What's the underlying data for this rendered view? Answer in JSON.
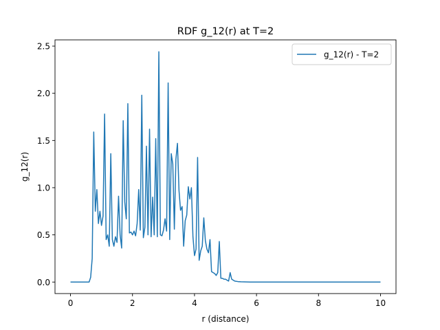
{
  "chart_data": {
    "type": "line",
    "title": "RDF g_12(r) at T=2",
    "xlabel": "r (distance)",
    "ylabel": "g_12(r)",
    "xlim": [
      -0.5,
      10.5
    ],
    "ylim": [
      -0.122,
      2.566
    ],
    "xticks": [
      0,
      2,
      4,
      6,
      8,
      10
    ],
    "xtick_labels": [
      "0",
      "2",
      "4",
      "6",
      "8",
      "10"
    ],
    "yticks": [
      0.0,
      0.5,
      1.0,
      1.5,
      2.0,
      2.5
    ],
    "ytick_labels": [
      "0.0",
      "0.5",
      "1.0",
      "1.5",
      "2.0",
      "2.5"
    ],
    "grid": false,
    "legend_position": "upper right",
    "series": [
      {
        "name": "g_12(r) - T=2",
        "color": "#1f77b4",
        "x": [
          0.0,
          0.05,
          0.1,
          0.15,
          0.2,
          0.25,
          0.3,
          0.35,
          0.4,
          0.45,
          0.5,
          0.55,
          0.6,
          0.65,
          0.7,
          0.75,
          0.8,
          0.85,
          0.9,
          0.95,
          1.0,
          1.05,
          1.1,
          1.15,
          1.2,
          1.25,
          1.3,
          1.35,
          1.4,
          1.45,
          1.5,
          1.55,
          1.6,
          1.65,
          1.7,
          1.75,
          1.8,
          1.85,
          1.9,
          1.95,
          2.0,
          2.05,
          2.1,
          2.15,
          2.2,
          2.25,
          2.3,
          2.35,
          2.4,
          2.45,
          2.5,
          2.55,
          2.6,
          2.65,
          2.7,
          2.75,
          2.8,
          2.85,
          2.9,
          2.95,
          3.0,
          3.05,
          3.1,
          3.15,
          3.2,
          3.25,
          3.3,
          3.35,
          3.4,
          3.45,
          3.5,
          3.55,
          3.6,
          3.65,
          3.7,
          3.75,
          3.8,
          3.85,
          3.9,
          3.95,
          4.0,
          4.05,
          4.1,
          4.15,
          4.2,
          4.25,
          4.3,
          4.35,
          4.4,
          4.45,
          4.5,
          4.55,
          4.6,
          4.65,
          4.7,
          4.75,
          4.8,
          4.85,
          4.9,
          4.95,
          5.0,
          5.05,
          5.1,
          5.15,
          5.2,
          5.3,
          5.4,
          5.5,
          5.6,
          5.7,
          5.8,
          6.0,
          7.0,
          8.0,
          9.0,
          10.0
        ],
        "y": [
          0.0,
          0.0,
          0.0,
          0.0,
          0.0,
          0.0,
          0.0,
          0.0,
          0.0,
          0.0,
          0.0,
          0.0,
          0.0,
          0.05,
          0.25,
          1.59,
          0.75,
          0.98,
          0.62,
          0.75,
          0.6,
          0.7,
          1.78,
          0.45,
          0.5,
          0.38,
          1.36,
          0.45,
          0.38,
          0.48,
          0.42,
          0.91,
          0.5,
          0.36,
          1.71,
          0.85,
          0.67,
          1.89,
          0.52,
          0.53,
          0.5,
          0.54,
          0.49,
          0.62,
          0.98,
          0.55,
          1.98,
          0.47,
          0.58,
          1.44,
          0.5,
          1.62,
          0.48,
          0.9,
          0.5,
          1.52,
          0.48,
          2.44,
          0.5,
          0.49,
          0.55,
          0.67,
          0.54,
          2.11,
          0.45,
          1.36,
          1.25,
          0.56,
          1.3,
          1.47,
          0.97,
          0.76,
          0.8,
          0.38,
          0.65,
          0.71,
          1.01,
          0.88,
          1.0,
          0.48,
          0.28,
          0.35,
          1.32,
          0.23,
          0.33,
          0.38,
          0.68,
          0.44,
          0.35,
          0.31,
          0.45,
          0.11,
          0.1,
          0.09,
          0.07,
          0.1,
          0.43,
          0.04,
          0.04,
          0.03,
          0.03,
          0.02,
          0.01,
          0.1,
          0.03,
          0.01,
          0.005,
          0.003,
          0.002,
          0.001,
          0.0,
          0.0,
          0.0,
          0.0,
          0.0,
          0.0
        ]
      }
    ]
  }
}
